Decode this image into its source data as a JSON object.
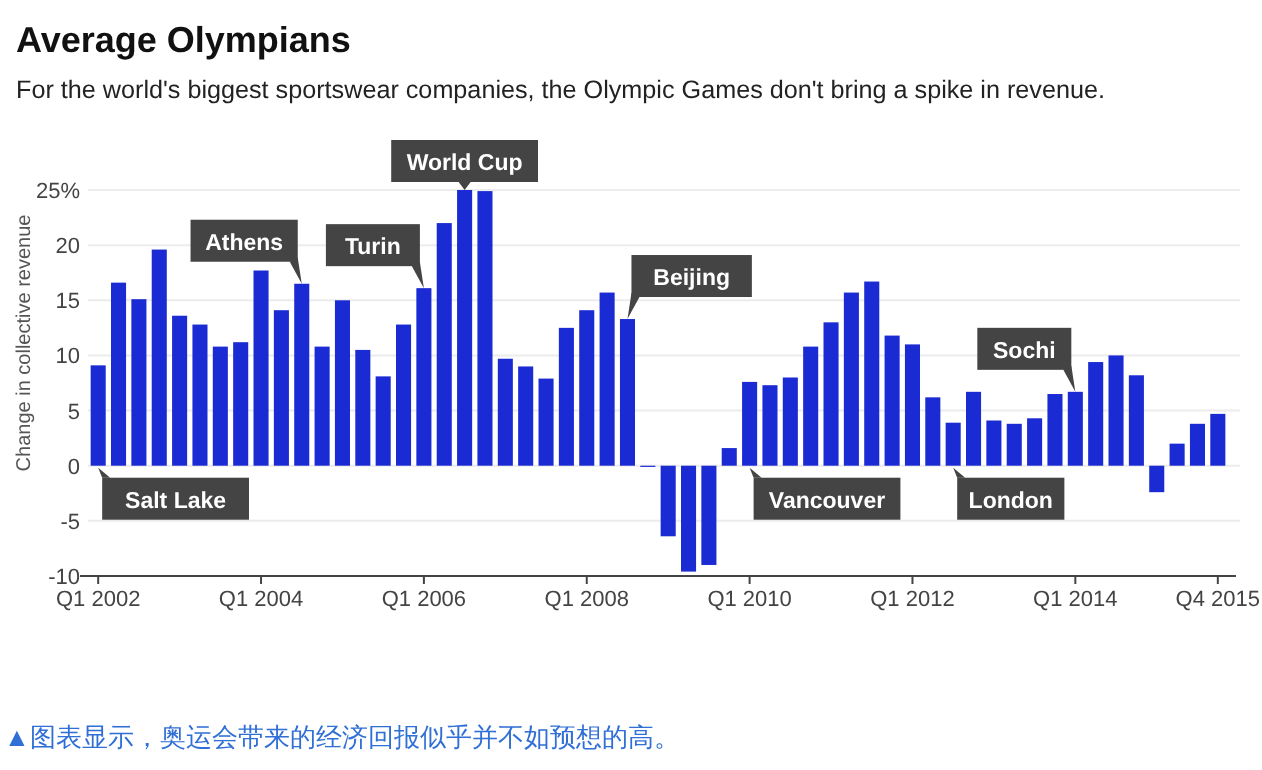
{
  "chart_data": {
    "type": "bar",
    "title": "Average Olympians",
    "subtitle": "For the world's biggest sportswear companies, the Olympic Games don't bring a spike in revenue.",
    "ylabel": "Change in collective revenue",
    "categories": [
      "Q1 2002",
      null,
      null,
      null,
      null,
      null,
      null,
      null,
      "Q1 2004",
      null,
      null,
      null,
      null,
      null,
      null,
      null,
      "Q1 2006",
      null,
      null,
      null,
      null,
      null,
      null,
      null,
      "Q1 2008",
      null,
      null,
      null,
      null,
      null,
      null,
      null,
      "Q1 2010",
      null,
      null,
      null,
      null,
      null,
      null,
      null,
      "Q1 2012",
      null,
      null,
      null,
      null,
      null,
      null,
      null,
      "Q1 2014",
      null,
      null,
      null,
      null,
      null,
      null,
      "Q4 2015"
    ],
    "values": [
      9.1,
      16.6,
      15.1,
      19.6,
      13.6,
      12.8,
      10.8,
      11.2,
      17.7,
      14.1,
      16.5,
      10.8,
      15.0,
      10.5,
      8.1,
      12.8,
      16.1,
      22.0,
      25.0,
      24.9,
      9.7,
      9.0,
      7.9,
      12.5,
      14.1,
      15.7,
      13.3,
      0,
      -6.4,
      -9.6,
      -9.0,
      1.6,
      7.6,
      7.3,
      8.0,
      10.8,
      13.0,
      15.7,
      16.7,
      11.8,
      11.0,
      6.2,
      3.9,
      6.7,
      4.1,
      3.8,
      4.3,
      6.5,
      6.7,
      9.4,
      10.0,
      8.2,
      -2.4,
      2.0,
      3.8,
      4.7
    ],
    "color": "#1b2bd3",
    "ylim": [
      -10,
      25
    ],
    "yticks": [
      -10,
      -5,
      0,
      5,
      10,
      15,
      20,
      {
        "value": 25,
        "label": "25%"
      }
    ],
    "grid": "y",
    "annotations": [
      {
        "text": "Salt Lake",
        "x": "Q1 2002",
        "y": 0
      },
      {
        "text": "Athens",
        "y": 16.5
      },
      {
        "text": "Turin",
        "x": "Q1 2006",
        "y": 16.1
      },
      {
        "text": "World Cup",
        "y": 25.0
      },
      "Beijing",
      {
        "text": "Vancouver",
        "x": "Q1 2010",
        "y": 0
      },
      "London",
      {
        "text": "Sochi",
        "x": "Q1 2014",
        "y": 6.7
      },
      "▲图表显示，奥运会带来的经济回报似乎并不如预想的高。"
    ]
  }
}
